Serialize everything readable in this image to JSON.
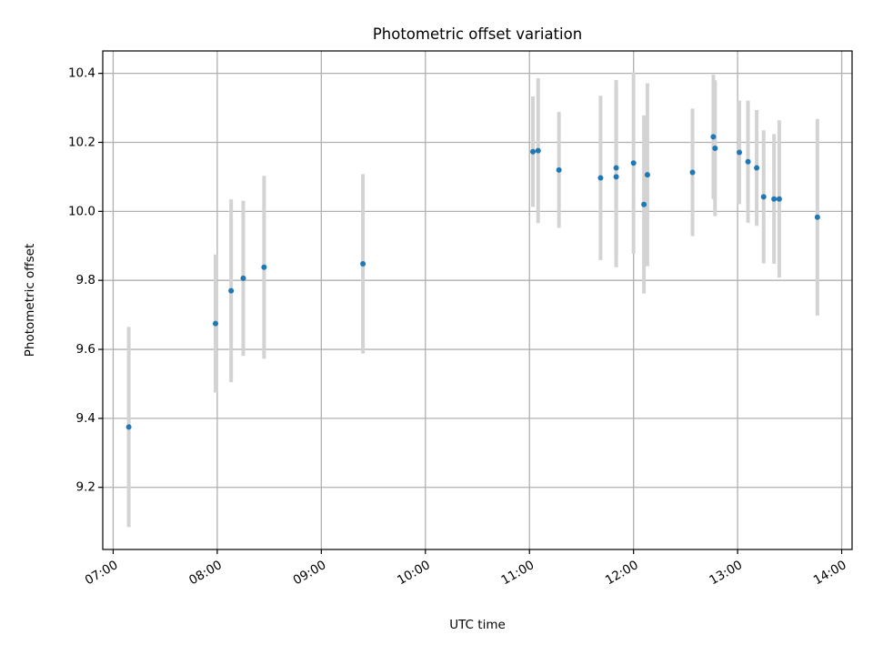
{
  "chart_data": {
    "type": "scatter",
    "title": "Photometric offset variation",
    "xlabel": "UTC time",
    "ylabel": "Photometric offset",
    "x_tick_labels": [
      "07:00",
      "08:00",
      "09:00",
      "10:00",
      "11:00",
      "12:00",
      "13:00",
      "14:00"
    ],
    "y_tick_labels": [
      "9.2",
      "9.4",
      "9.6",
      "9.8",
      "10.0",
      "10.2",
      "10.4"
    ],
    "xlim": [
      "06:54",
      "14:06"
    ],
    "ylim": [
      9.02,
      10.465
    ],
    "grid": true,
    "colors": {
      "points": "#1f77b4",
      "errorbars": "#d3d3d3",
      "grid": "#b0b0b0"
    },
    "points": [
      {
        "x": "07:09",
        "y": 9.375,
        "err": 0.29
      },
      {
        "x": "07:59",
        "y": 9.675,
        "err": 0.2
      },
      {
        "x": "08:08",
        "y": 9.77,
        "err": 0.265
      },
      {
        "x": "08:15",
        "y": 9.806,
        "err": 0.225
      },
      {
        "x": "08:27",
        "y": 9.838,
        "err": 0.265
      },
      {
        "x": "09:24",
        "y": 9.848,
        "err": 0.26
      },
      {
        "x": "11:02",
        "y": 10.173,
        "err": 0.16
      },
      {
        "x": "11:05",
        "y": 10.176,
        "err": 0.21
      },
      {
        "x": "11:17",
        "y": 10.12,
        "err": 0.168
      },
      {
        "x": "11:41",
        "y": 10.097,
        "err": 0.238
      },
      {
        "x": "11:50",
        "y": 10.126,
        "err": 0.255
      },
      {
        "x": "11:50",
        "y": 10.1,
        "err": 0.262
      },
      {
        "x": "12:00",
        "y": 10.14,
        "err": 0.263
      },
      {
        "x": "12:06",
        "y": 10.02,
        "err": 0.258
      },
      {
        "x": "12:08",
        "y": 10.106,
        "err": 0.265
      },
      {
        "x": "12:34",
        "y": 10.113,
        "err": 0.185
      },
      {
        "x": "12:46",
        "y": 10.216,
        "err": 0.18
      },
      {
        "x": "12:47",
        "y": 10.183,
        "err": 0.197
      },
      {
        "x": "13:01",
        "y": 10.171,
        "err": 0.15
      },
      {
        "x": "13:06",
        "y": 10.144,
        "err": 0.177
      },
      {
        "x": "13:11",
        "y": 10.126,
        "err": 0.168
      },
      {
        "x": "13:15",
        "y": 10.042,
        "err": 0.193
      },
      {
        "x": "13:21",
        "y": 10.036,
        "err": 0.188
      },
      {
        "x": "13:24",
        "y": 10.036,
        "err": 0.228
      },
      {
        "x": "13:46",
        "y": 9.983,
        "err": 0.285
      }
    ]
  }
}
